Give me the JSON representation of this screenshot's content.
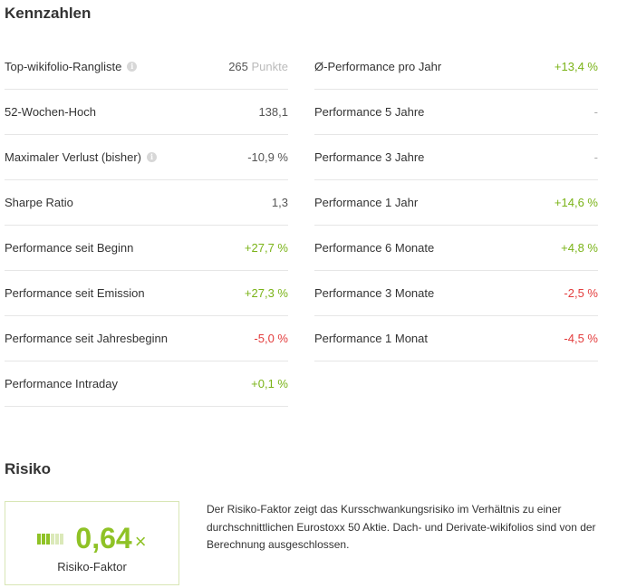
{
  "kennzahlen": {
    "title": "Kennzahlen",
    "left": [
      {
        "label": "Top-wikifolio-Rangliste",
        "value": "265",
        "unit": "Punkte",
        "info": true,
        "tone": "neutral"
      },
      {
        "label": "52-Wochen-Hoch",
        "value": "138,1",
        "tone": "neutral"
      },
      {
        "label": "Maximaler Verlust (bisher)",
        "value": "-10,9 %",
        "info": true,
        "tone": "neutral"
      },
      {
        "label": "Sharpe Ratio",
        "value": "1,3",
        "tone": "neutral"
      },
      {
        "label": "Performance seit Beginn",
        "value": "+27,7 %",
        "tone": "pos"
      },
      {
        "label": "Performance seit Emission",
        "value": "+27,3 %",
        "tone": "pos"
      },
      {
        "label": "Performance seit Jahresbeginn",
        "value": "-5,0 %",
        "tone": "neg"
      },
      {
        "label": "Performance Intraday",
        "value": "+0,1 %",
        "tone": "pos"
      }
    ],
    "right": [
      {
        "label": "Ø-Performance pro Jahr",
        "value": "+13,4 %",
        "tone": "pos"
      },
      {
        "label": "Performance 5 Jahre",
        "value": "-",
        "tone": "na"
      },
      {
        "label": "Performance 3 Jahre",
        "value": "-",
        "tone": "na"
      },
      {
        "label": "Performance 1 Jahr",
        "value": "+14,6 %",
        "tone": "pos"
      },
      {
        "label": "Performance 6 Monate",
        "value": "+4,8 %",
        "tone": "pos"
      },
      {
        "label": "Performance 3 Monate",
        "value": "-2,5 %",
        "tone": "neg"
      },
      {
        "label": "Performance 1 Monat",
        "value": "-4,5 %",
        "tone": "neg"
      }
    ]
  },
  "risiko": {
    "title": "Risiko",
    "value": "0,64",
    "times": "×",
    "label": "Risiko-Faktor",
    "level_bars": {
      "filled": 3,
      "total": 6
    },
    "description": "Der Risiko-Faktor zeigt das Kursschwankungsrisiko im Verhältnis zu einer durchschnittlichen Eurostoxx 50 Aktie. Dach- und Derivate-wikifolios sind von der Berechnung ausgeschlossen."
  },
  "colors": {
    "positive": "#7ab317",
    "negative": "#e33c3c",
    "accent": "#8fc226"
  },
  "icons": {
    "info": "info-icon"
  }
}
